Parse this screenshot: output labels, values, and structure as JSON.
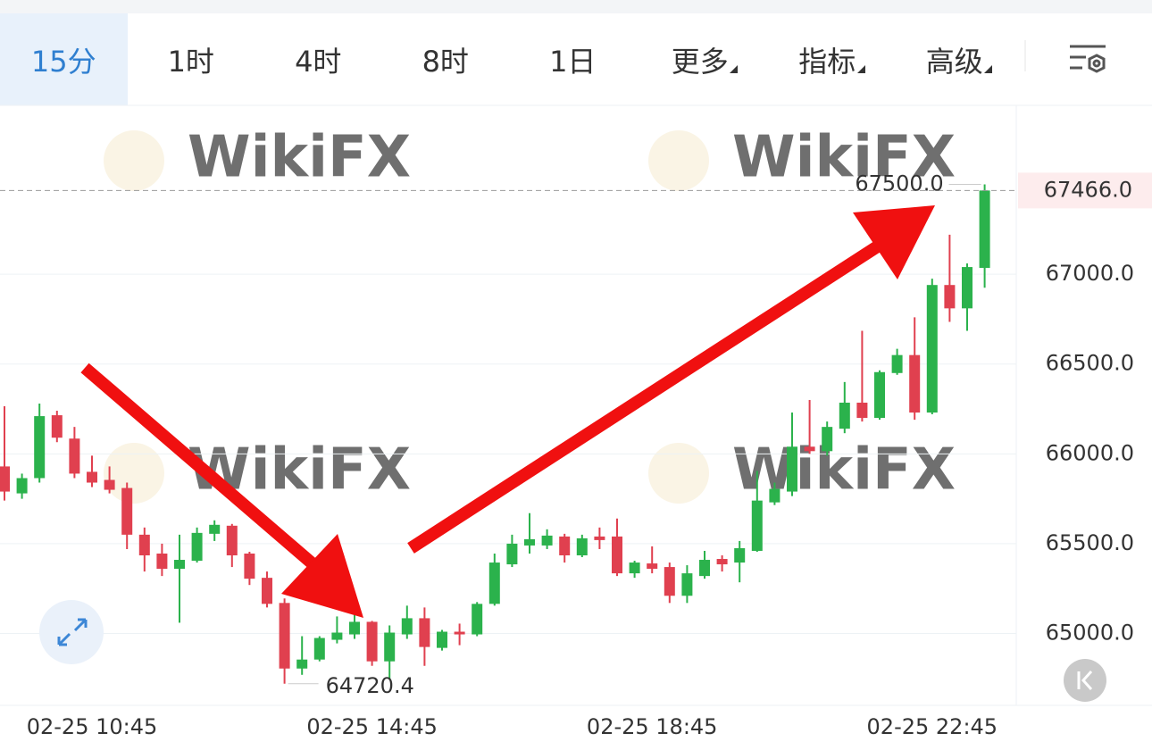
{
  "tabs": [
    {
      "label": "15分",
      "selected": true
    },
    {
      "label": "1时"
    },
    {
      "label": "4时"
    },
    {
      "label": "8时"
    },
    {
      "label": "1日"
    },
    {
      "label": "更多",
      "dropdown": true
    },
    {
      "label": "指标",
      "dropdown": true
    },
    {
      "label": "高级",
      "dropdown": true
    }
  ],
  "watermark": "WikiFX",
  "chart_data": {
    "type": "candlestick",
    "categories": [
      null,
      null,
      null,
      null,
      null,
      "02-25 10:45",
      null,
      null,
      null,
      null,
      null,
      null,
      null,
      null,
      null,
      null,
      null,
      null,
      null,
      null,
      null,
      "02-25 14:45",
      null,
      null,
      null,
      null,
      null,
      null,
      null,
      null,
      null,
      null,
      null,
      null,
      null,
      null,
      null,
      "02-25 18:45",
      null,
      null,
      null,
      null,
      null,
      null,
      null,
      null,
      null,
      null,
      null,
      null,
      null,
      null,
      null,
      "02-25 22:45",
      null,
      null,
      null
    ],
    "open": [
      65930,
      65780,
      65865,
      66215,
      66085,
      65900,
      65855,
      65810,
      65550,
      65445,
      65360,
      65405,
      65555,
      65600,
      65445,
      65310,
      65170,
      64805,
      64855,
      64965,
      64995,
      65065,
      64845,
      64995,
      65085,
      64920,
      65010,
      64995,
      65165,
      65385,
      65490,
      65490,
      65540,
      65435,
      65540,
      65540,
      65335,
      65390,
      65370,
      65210,
      65320,
      65415,
      65395,
      65460,
      65730,
      65790,
      66040,
      66015,
      66140,
      66285,
      66200,
      66450,
      66550,
      66230,
      66940,
      66810,
      67035
    ],
    "high": [
      66265,
      65890,
      66280,
      66240,
      66150,
      65990,
      65930,
      65840,
      65590,
      65500,
      65550,
      65590,
      65630,
      65610,
      65455,
      65345,
      65195,
      64985,
      64985,
      65095,
      65105,
      65070,
      65045,
      65155,
      65145,
      65020,
      65055,
      65175,
      65445,
      65550,
      65670,
      65580,
      65555,
      65550,
      65590,
      65640,
      65405,
      65485,
      65395,
      65380,
      65460,
      65435,
      65515,
      65905,
      65840,
      66230,
      66300,
      66180,
      66400,
      66685,
      66465,
      66585,
      66760,
      66975,
      67220,
      67060,
      67500
    ],
    "low": [
      65740,
      65750,
      65840,
      66065,
      65865,
      65815,
      65780,
      65470,
      65345,
      65320,
      65060,
      65395,
      65515,
      65370,
      65270,
      65145,
      64720.4,
      64770,
      64845,
      64945,
      64970,
      64820,
      64745,
      64970,
      64820,
      64905,
      64935,
      64985,
      65155,
      65370,
      65445,
      65470,
      65395,
      65425,
      65470,
      65320,
      65310,
      65335,
      65170,
      65170,
      65305,
      65345,
      65285,
      65455,
      65715,
      65765,
      66000,
      65990,
      66115,
      66180,
      66190,
      66440,
      66190,
      66220,
      66735,
      66685,
      66925
    ],
    "close": [
      65790,
      65865,
      66210,
      66090,
      65890,
      65840,
      65800,
      65550,
      65435,
      65360,
      65410,
      65560,
      65605,
      65435,
      65305,
      65165,
      64805,
      64855,
      64975,
      65005,
      65065,
      64845,
      65005,
      65085,
      64925,
      65010,
      64995,
      65165,
      65395,
      65500,
      65525,
      65545,
      65435,
      65530,
      65520,
      65335,
      65395,
      65360,
      65210,
      65335,
      65410,
      65385,
      65475,
      65740,
      65805,
      66040,
      66015,
      66150,
      66285,
      66200,
      66455,
      66550,
      66230,
      66940,
      66810,
      67040,
      67466
    ],
    "up_color": "#2bb24c",
    "down_color": "#e0404f",
    "ylim": [
      64600,
      67940
    ],
    "yticks": [
      {
        "value": 65000,
        "label": "65000.0"
      },
      {
        "value": 65500,
        "label": "65500.0"
      },
      {
        "value": 66000,
        "label": "66000.0"
      },
      {
        "value": 66500,
        "label": "66500.0"
      },
      {
        "value": 67000,
        "label": "67000.0"
      }
    ],
    "grid": true,
    "current_price": {
      "value": 67466,
      "label": "67466.0"
    },
    "annotations": [
      {
        "value": 67500,
        "label": "67500.0"
      },
      {
        "value": 64720.4,
        "label": "64720.4"
      }
    ]
  }
}
